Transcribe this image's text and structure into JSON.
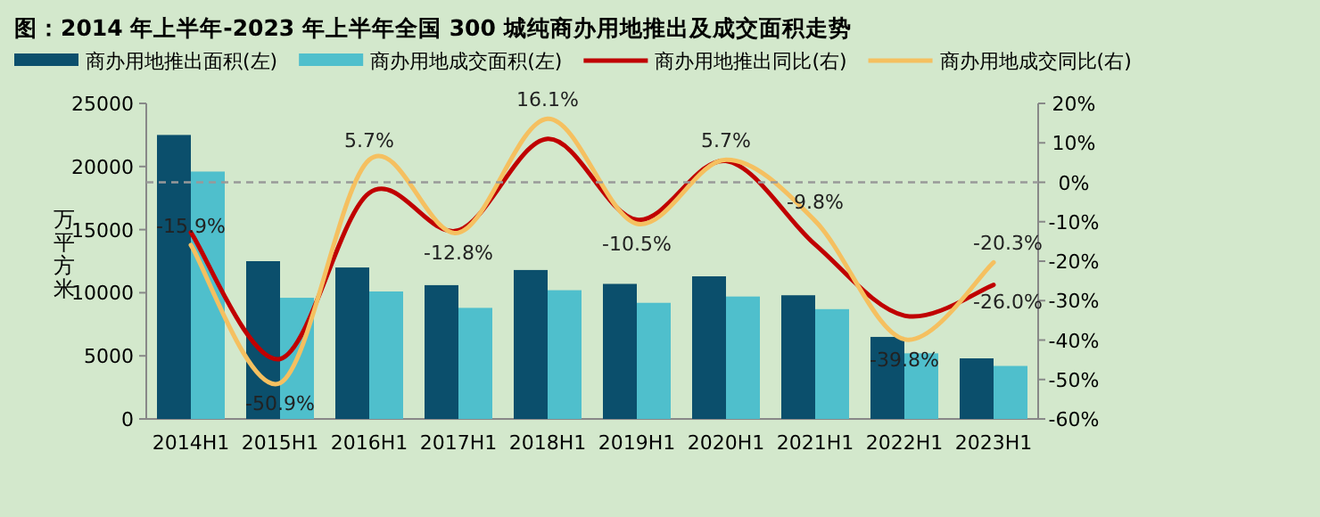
{
  "chart_data": {
    "type": "bar",
    "title": "图：2014 年上半年-2023 年上半年全国 300 城纯商办用地推出及成交面积走势",
    "ylabel": "万平方米",
    "categories": [
      "2014H1",
      "2015H1",
      "2016H1",
      "2017H1",
      "2018H1",
      "2019H1",
      "2020H1",
      "2021H1",
      "2022H1",
      "2023H1"
    ],
    "series": [
      {
        "name": "商办用地推出面积(左)",
        "color": "#0b4f6c",
        "values": [
          22500,
          12500,
          12000,
          10600,
          11800,
          10700,
          11300,
          9800,
          6500,
          4800
        ]
      },
      {
        "name": "商办用地成交面积(左)",
        "color": "#4fbfcc",
        "values": [
          19600,
          9600,
          10100,
          8800,
          10200,
          9200,
          9700,
          8700,
          5200,
          4200
        ]
      },
      {
        "name": "商办用地推出同比(右)",
        "type": "line",
        "axis": "y2",
        "color": "#c00000",
        "values": [
          -12.7,
          -44.8,
          -2.7,
          -12.2,
          11,
          -9.5,
          5.4,
          -15.8,
          -33.8,
          -26.0
        ],
        "value_labels": [
          null,
          null,
          null,
          null,
          null,
          null,
          null,
          null,
          null,
          "-26.0%"
        ]
      },
      {
        "name": "商办用地成交同比(右)",
        "type": "line",
        "axis": "y2",
        "color": "#f5c060",
        "values": [
          -15.9,
          -50.9,
          5.7,
          -12.8,
          16.1,
          -10.5,
          5.7,
          -9.8,
          -39.8,
          -20.3
        ],
        "value_labels": [
          "-15.9%",
          "-50.9%",
          "5.7%",
          "-12.8%",
          "16.1%",
          "-10.5%",
          "5.7%",
          "-9.8%",
          "-39.8%",
          "-20.3%"
        ]
      }
    ],
    "ylim": [
      0,
      25000
    ],
    "yticks": [
      0,
      5000,
      10000,
      15000,
      20000,
      25000
    ],
    "y2lim": [
      -60,
      20
    ],
    "y2ticks": [
      {
        "value": -60,
        "label": "-60%"
      },
      {
        "value": -50,
        "label": "-50%"
      },
      {
        "value": -40,
        "label": "-40%"
      },
      {
        "value": -30,
        "label": "-30%"
      },
      {
        "value": -20,
        "label": "-20%"
      },
      {
        "value": -10,
        "label": "-10%"
      },
      {
        "value": 0,
        "label": "0%"
      },
      {
        "value": 10,
        "label": "10%"
      },
      {
        "value": 20,
        "label": "20%"
      }
    ],
    "ref_lines": [
      {
        "axis": "y2",
        "value": 0,
        "color": "#999999",
        "line_style": "dashed"
      }
    ],
    "legend": "top",
    "line_style": "solid",
    "marker": "none"
  }
}
